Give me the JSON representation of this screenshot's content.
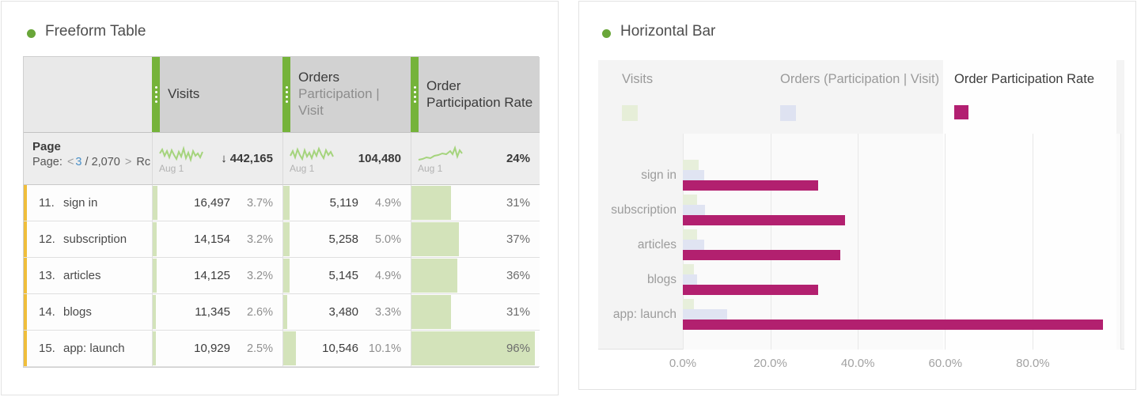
{
  "colors": {
    "accent_green": "#75b33a",
    "title_dot_green": "#69a639",
    "row_accent_yellow": "#f0be3b",
    "table_fill_green": "#d3e3ba",
    "sparkline_green": "#a5d47d",
    "magenta": "#b21f71",
    "legend_green": "#e6eed8",
    "legend_lavender": "#dee2f1",
    "page_link_blue": "#4a90c8"
  },
  "left_panel": {
    "title": "Freeform Table",
    "table": {
      "columns": [
        {
          "name": "Visits",
          "subtitle": ""
        },
        {
          "name": "Orders",
          "subtitle": "Participation | Visit"
        },
        {
          "name": "Order Participation Rate",
          "subtitle": ""
        }
      ],
      "summary": {
        "dimension": "Page",
        "pagination": {
          "label": "Page:",
          "prev": "<",
          "current": "3",
          "of": "/ 2,070",
          "next": ">",
          "trailing": "Rc"
        },
        "metrics": [
          {
            "date": "Aug 1",
            "arrow": "↓",
            "value": "442,165"
          },
          {
            "date": "Aug 1",
            "arrow": "",
            "value": "104,480"
          },
          {
            "date": "Aug 1",
            "arrow": "",
            "value": "24%"
          }
        ]
      },
      "rows": [
        {
          "rank": "11.",
          "name": "sign in",
          "visits": "16,497",
          "visits_pct": "3.7%",
          "orders": "5,119",
          "orders_pct": "4.9%",
          "rate": "31%",
          "bars": {
            "visits": 3.7,
            "orders": 4.9,
            "rate": 31
          }
        },
        {
          "rank": "12.",
          "name": "subscription",
          "visits": "14,154",
          "visits_pct": "3.2%",
          "orders": "5,258",
          "orders_pct": "5.0%",
          "rate": "37%",
          "bars": {
            "visits": 3.2,
            "orders": 5.0,
            "rate": 37
          }
        },
        {
          "rank": "13.",
          "name": "articles",
          "visits": "14,125",
          "visits_pct": "3.2%",
          "orders": "5,145",
          "orders_pct": "4.9%",
          "rate": "36%",
          "bars": {
            "visits": 3.2,
            "orders": 4.9,
            "rate": 36
          }
        },
        {
          "rank": "14.",
          "name": "blogs",
          "visits": "11,345",
          "visits_pct": "2.6%",
          "orders": "3,480",
          "orders_pct": "3.3%",
          "rate": "31%",
          "bars": {
            "visits": 2.6,
            "orders": 3.3,
            "rate": 31
          }
        },
        {
          "rank": "15.",
          "name": "app: launch",
          "visits": "10,929",
          "visits_pct": "2.5%",
          "orders": "10,546",
          "orders_pct": "10.1%",
          "rate": "96%",
          "bars": {
            "visits": 2.5,
            "orders": 10.1,
            "rate": 96
          }
        }
      ]
    }
  },
  "right_panel": {
    "title": "Horizontal Bar",
    "legend": [
      {
        "label": "Visits",
        "color": "#e6eed8",
        "selected": false
      },
      {
        "label": "Orders (Participation | Visit)",
        "color": "#dee2f1",
        "selected": false
      },
      {
        "label": "Order Participation Rate",
        "color": "#b21f71",
        "selected": true
      }
    ]
  },
  "chart_data": {
    "type": "bar",
    "orientation": "horizontal",
    "title": "Horizontal Bar",
    "categories": [
      "sign in",
      "subscription",
      "articles",
      "blogs",
      "app: launch"
    ],
    "series": [
      {
        "name": "Visits",
        "color": "#e7efdb",
        "values": [
          3.7,
          3.2,
          3.2,
          2.6,
          2.5
        ]
      },
      {
        "name": "Orders (Participation | Visit)",
        "color": "#e0e4f2",
        "values": [
          4.9,
          5.0,
          4.9,
          3.3,
          10.1
        ]
      },
      {
        "name": "Order Participation Rate",
        "color": "#b2206f",
        "values": [
          31,
          37,
          36,
          31,
          96
        ]
      }
    ],
    "x_ticks": [
      "0.0%",
      "20.0%",
      "40.0%",
      "60.0%",
      "80.0%"
    ],
    "xlim": [
      0,
      100
    ],
    "grid": true,
    "legend_position": "top",
    "legend_selected": "Order Participation Rate",
    "unit": "%"
  }
}
